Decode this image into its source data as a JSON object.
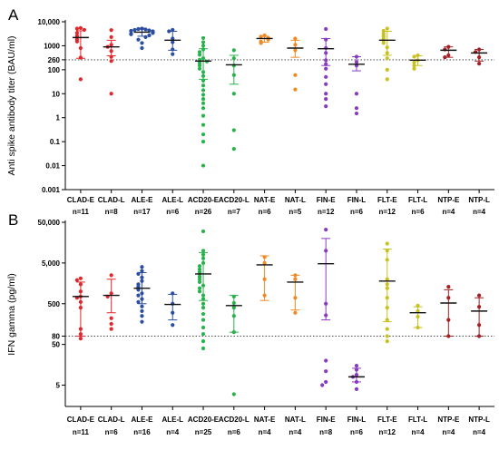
{
  "chart_data": [
    {
      "type": "scatter",
      "panel_label": "A",
      "ylabel": "Anti spike antibody titer (BAU/ml)",
      "yscale": "log",
      "ylim": [
        0.001,
        10000
      ],
      "y_ticks": [
        {
          "v": 10000,
          "label": "10,000"
        },
        {
          "v": 1000,
          "label": "1000"
        },
        {
          "v": 260,
          "label": "260"
        },
        {
          "v": 100,
          "label": "100"
        },
        {
          "v": 10,
          "label": "10"
        },
        {
          "v": 1,
          "label": "1"
        },
        {
          "v": 0.1,
          "label": "0.1"
        },
        {
          "v": 0.01,
          "label": "0.01"
        },
        {
          "v": 0.001,
          "label": "0.001"
        }
      ],
      "threshold": 260,
      "groups": [
        {
          "name": "CLAD-E",
          "n": "n=11",
          "color": "#e3262b",
          "median": 2200,
          "err_low": 300,
          "err_high": 4200,
          "points": [
            5500,
            5200,
            4600,
            3400,
            2600,
            2200,
            1800,
            1500,
            800,
            320,
            40
          ]
        },
        {
          "name": "CLAD-L",
          "n": "n=8",
          "color": "#e3262b",
          "median": 900,
          "err_low": 380,
          "err_high": 1700,
          "points": [
            4500,
            2300,
            1100,
            900,
            600,
            340,
            230,
            10
          ]
        },
        {
          "name": "ALE-E",
          "n": "n=17",
          "color": "#2b4ea2",
          "median": 3700,
          "err_low": 2500,
          "err_high": 5400,
          "points": [
            5200,
            5000,
            4800,
            4600,
            4400,
            4200,
            4000,
            3800,
            3600,
            3400,
            3200,
            3000,
            2700,
            2300,
            1800,
            1300,
            800
          ]
        },
        {
          "name": "ALE-L",
          "n": "n=6",
          "color": "#2b4ea2",
          "median": 1700,
          "err_low": 650,
          "err_high": 4000,
          "points": [
            4600,
            4000,
            2000,
            1400,
            700,
            450
          ]
        },
        {
          "name": "ACD20-E",
          "n": "n=26",
          "color": "#27b34a",
          "median": 230,
          "err_low": 40,
          "err_high": 750,
          "points": [
            2100,
            1400,
            1000,
            700,
            550,
            420,
            300,
            260,
            220,
            190,
            150,
            110,
            80,
            55,
            35,
            22,
            14,
            9,
            6,
            4,
            2.5,
            1.2,
            0.5,
            0.2,
            0.1,
            0.01
          ]
        },
        {
          "name": "ACD20-L",
          "n": "n=7",
          "color": "#27b34a",
          "median": 160,
          "err_low": 25,
          "err_high": 400,
          "points": [
            650,
            300,
            150,
            60,
            10,
            0.3,
            0.05
          ]
        },
        {
          "name": "NAT-E",
          "n": "n=6",
          "color": "#f08a24",
          "median": 2000,
          "err_low": 1400,
          "err_high": 2500,
          "points": [
            2700,
            2400,
            2100,
            1800,
            1500,
            1300
          ]
        },
        {
          "name": "NAT-L",
          "n": "n=5",
          "color": "#f08a24",
          "median": 800,
          "err_low": 330,
          "err_high": 1700,
          "points": [
            2000,
            1100,
            650,
            60,
            15
          ]
        },
        {
          "name": "FIN-E",
          "n": "n=12",
          "color": "#8a3ac2",
          "median": 750,
          "err_low": 150,
          "err_high": 2000,
          "points": [
            5000,
            1800,
            800,
            500,
            250,
            170,
            110,
            50,
            25,
            10,
            6,
            3
          ]
        },
        {
          "name": "FIN-L",
          "n": "n=6",
          "color": "#8a3ac2",
          "median": 170,
          "err_low": 90,
          "err_high": 350,
          "points": [
            350,
            210,
            150,
            10,
            2.5,
            1.5
          ]
        },
        {
          "name": "FLT-E",
          "n": "n=12",
          "color": "#c8c21e",
          "median": 1700,
          "err_low": 400,
          "err_high": 4000,
          "points": [
            5200,
            4200,
            3200,
            2500,
            2000,
            1700,
            1300,
            850,
            500,
            300,
            100,
            40
          ]
        },
        {
          "name": "FLT-L",
          "n": "n=6",
          "color": "#c8c21e",
          "median": 250,
          "err_low": 150,
          "err_high": 380,
          "points": [
            400,
            350,
            250,
            200,
            150,
            110
          ]
        },
        {
          "name": "NTP-E",
          "n": "n=4",
          "color": "#a32024",
          "median": 650,
          "err_low": 330,
          "err_high": 900,
          "points": [
            900,
            700,
            400,
            330
          ]
        },
        {
          "name": "NTP-L",
          "n": "n=4",
          "color": "#a32024",
          "median": 500,
          "err_low": 230,
          "err_high": 700,
          "points": [
            700,
            550,
            330,
            180
          ]
        }
      ]
    },
    {
      "type": "scatter",
      "panel_label": "B",
      "ylabel": "IFN gamma (pg/ml)",
      "yscale": "log",
      "ylim": [
        1.5,
        50000
      ],
      "y_ticks": [
        {
          "v": 50000,
          "label": "50,000"
        },
        {
          "v": 5000,
          "label": "5,000"
        },
        {
          "v": 500,
          "label": "500"
        },
        {
          "v": 80,
          "label": "80"
        },
        {
          "v": 50,
          "label": "50"
        },
        {
          "v": 5,
          "label": "5"
        }
      ],
      "threshold": 80,
      "groups": [
        {
          "name": "CLAD-E",
          "n": "n=11",
          "color": "#e3262b",
          "median": 750,
          "err_low": 80,
          "err_high": 1700,
          "points": [
            2100,
            1900,
            1500,
            1000,
            750,
            700,
            550,
            400,
            120,
            90,
            70
          ]
        },
        {
          "name": "CLAD-L",
          "n": "n=6",
          "color": "#e3262b",
          "median": 800,
          "err_low": 300,
          "err_high": 2000,
          "points": [
            2500,
            900,
            750,
            220,
            160,
            120
          ]
        },
        {
          "name": "ALE-E",
          "n": "n=16",
          "color": "#2b4ea2",
          "median": 1200,
          "err_low": 500,
          "err_high": 2900,
          "points": [
            4000,
            3200,
            2700,
            2200,
            1800,
            1500,
            1300,
            1100,
            900,
            800,
            650,
            550,
            430,
            330,
            250,
            180
          ]
        },
        {
          "name": "ALE-L",
          "n": "n=4",
          "color": "#2b4ea2",
          "median": 480,
          "err_low": 200,
          "err_high": 850,
          "points": [
            900,
            500,
            300,
            150
          ]
        },
        {
          "name": "ACD20-E",
          "n": "n=25",
          "color": "#27b34a",
          "median": 2700,
          "err_low": 600,
          "err_high": 9000,
          "points": [
            30000,
            10000,
            8000,
            6500,
            5000,
            4200,
            3500,
            3000,
            2700,
            2300,
            2000,
            1700,
            1400,
            1200,
            1000,
            800,
            650,
            500,
            400,
            280,
            200,
            130,
            90,
            60,
            40
          ]
        },
        {
          "name": "ACD20-L",
          "n": "n=6",
          "color": "#27b34a",
          "median": 450,
          "err_low": 100,
          "err_high": 800,
          "points": [
            750,
            520,
            400,
            250,
            100,
            3
          ]
        },
        {
          "name": "NAT-E",
          "n": "n=4",
          "color": "#f08a24",
          "median": 4500,
          "err_low": 600,
          "err_high": 7500,
          "points": [
            7000,
            5000,
            2000,
            800
          ]
        },
        {
          "name": "NAT-L",
          "n": "n=4",
          "color": "#f08a24",
          "median": 1700,
          "err_low": 350,
          "err_high": 2500,
          "points": [
            2500,
            2000,
            700,
            300
          ]
        },
        {
          "name": "FIN-E",
          "n": "n=8",
          "color": "#8a3ac2",
          "median": 4800,
          "err_low": 200,
          "err_high": 20000,
          "points": [
            33000,
            10000,
            500,
            260,
            20,
            11,
            6,
            5
          ]
        },
        {
          "name": "FIN-L",
          "n": "n=6",
          "color": "#8a3ac2",
          "median": 8,
          "err_low": 6,
          "err_high": 13,
          "points": [
            15,
            12,
            9,
            8,
            6,
            4
          ]
        },
        {
          "name": "FLT-E",
          "n": "n=12",
          "color": "#c8c21e",
          "median": 1800,
          "err_low": 180,
          "err_high": 11000,
          "points": [
            15000,
            10000,
            6000,
            2000,
            1500,
            1200,
            700,
            400,
            200,
            120,
            80,
            60
          ]
        },
        {
          "name": "FLT-L",
          "n": "n=4",
          "color": "#c8c21e",
          "median": 300,
          "err_low": 130,
          "err_high": 420,
          "points": [
            450,
            330,
            240,
            130
          ]
        },
        {
          "name": "NTP-E",
          "n": "n=4",
          "color": "#a32024",
          "median": 520,
          "err_low": 80,
          "err_high": 1100,
          "points": [
            1300,
            700,
            200,
            80
          ]
        },
        {
          "name": "NTP-L",
          "n": "n=4",
          "color": "#a32024",
          "median": 330,
          "err_low": 80,
          "err_high": 700,
          "points": [
            800,
            420,
            150,
            80
          ]
        }
      ]
    }
  ]
}
